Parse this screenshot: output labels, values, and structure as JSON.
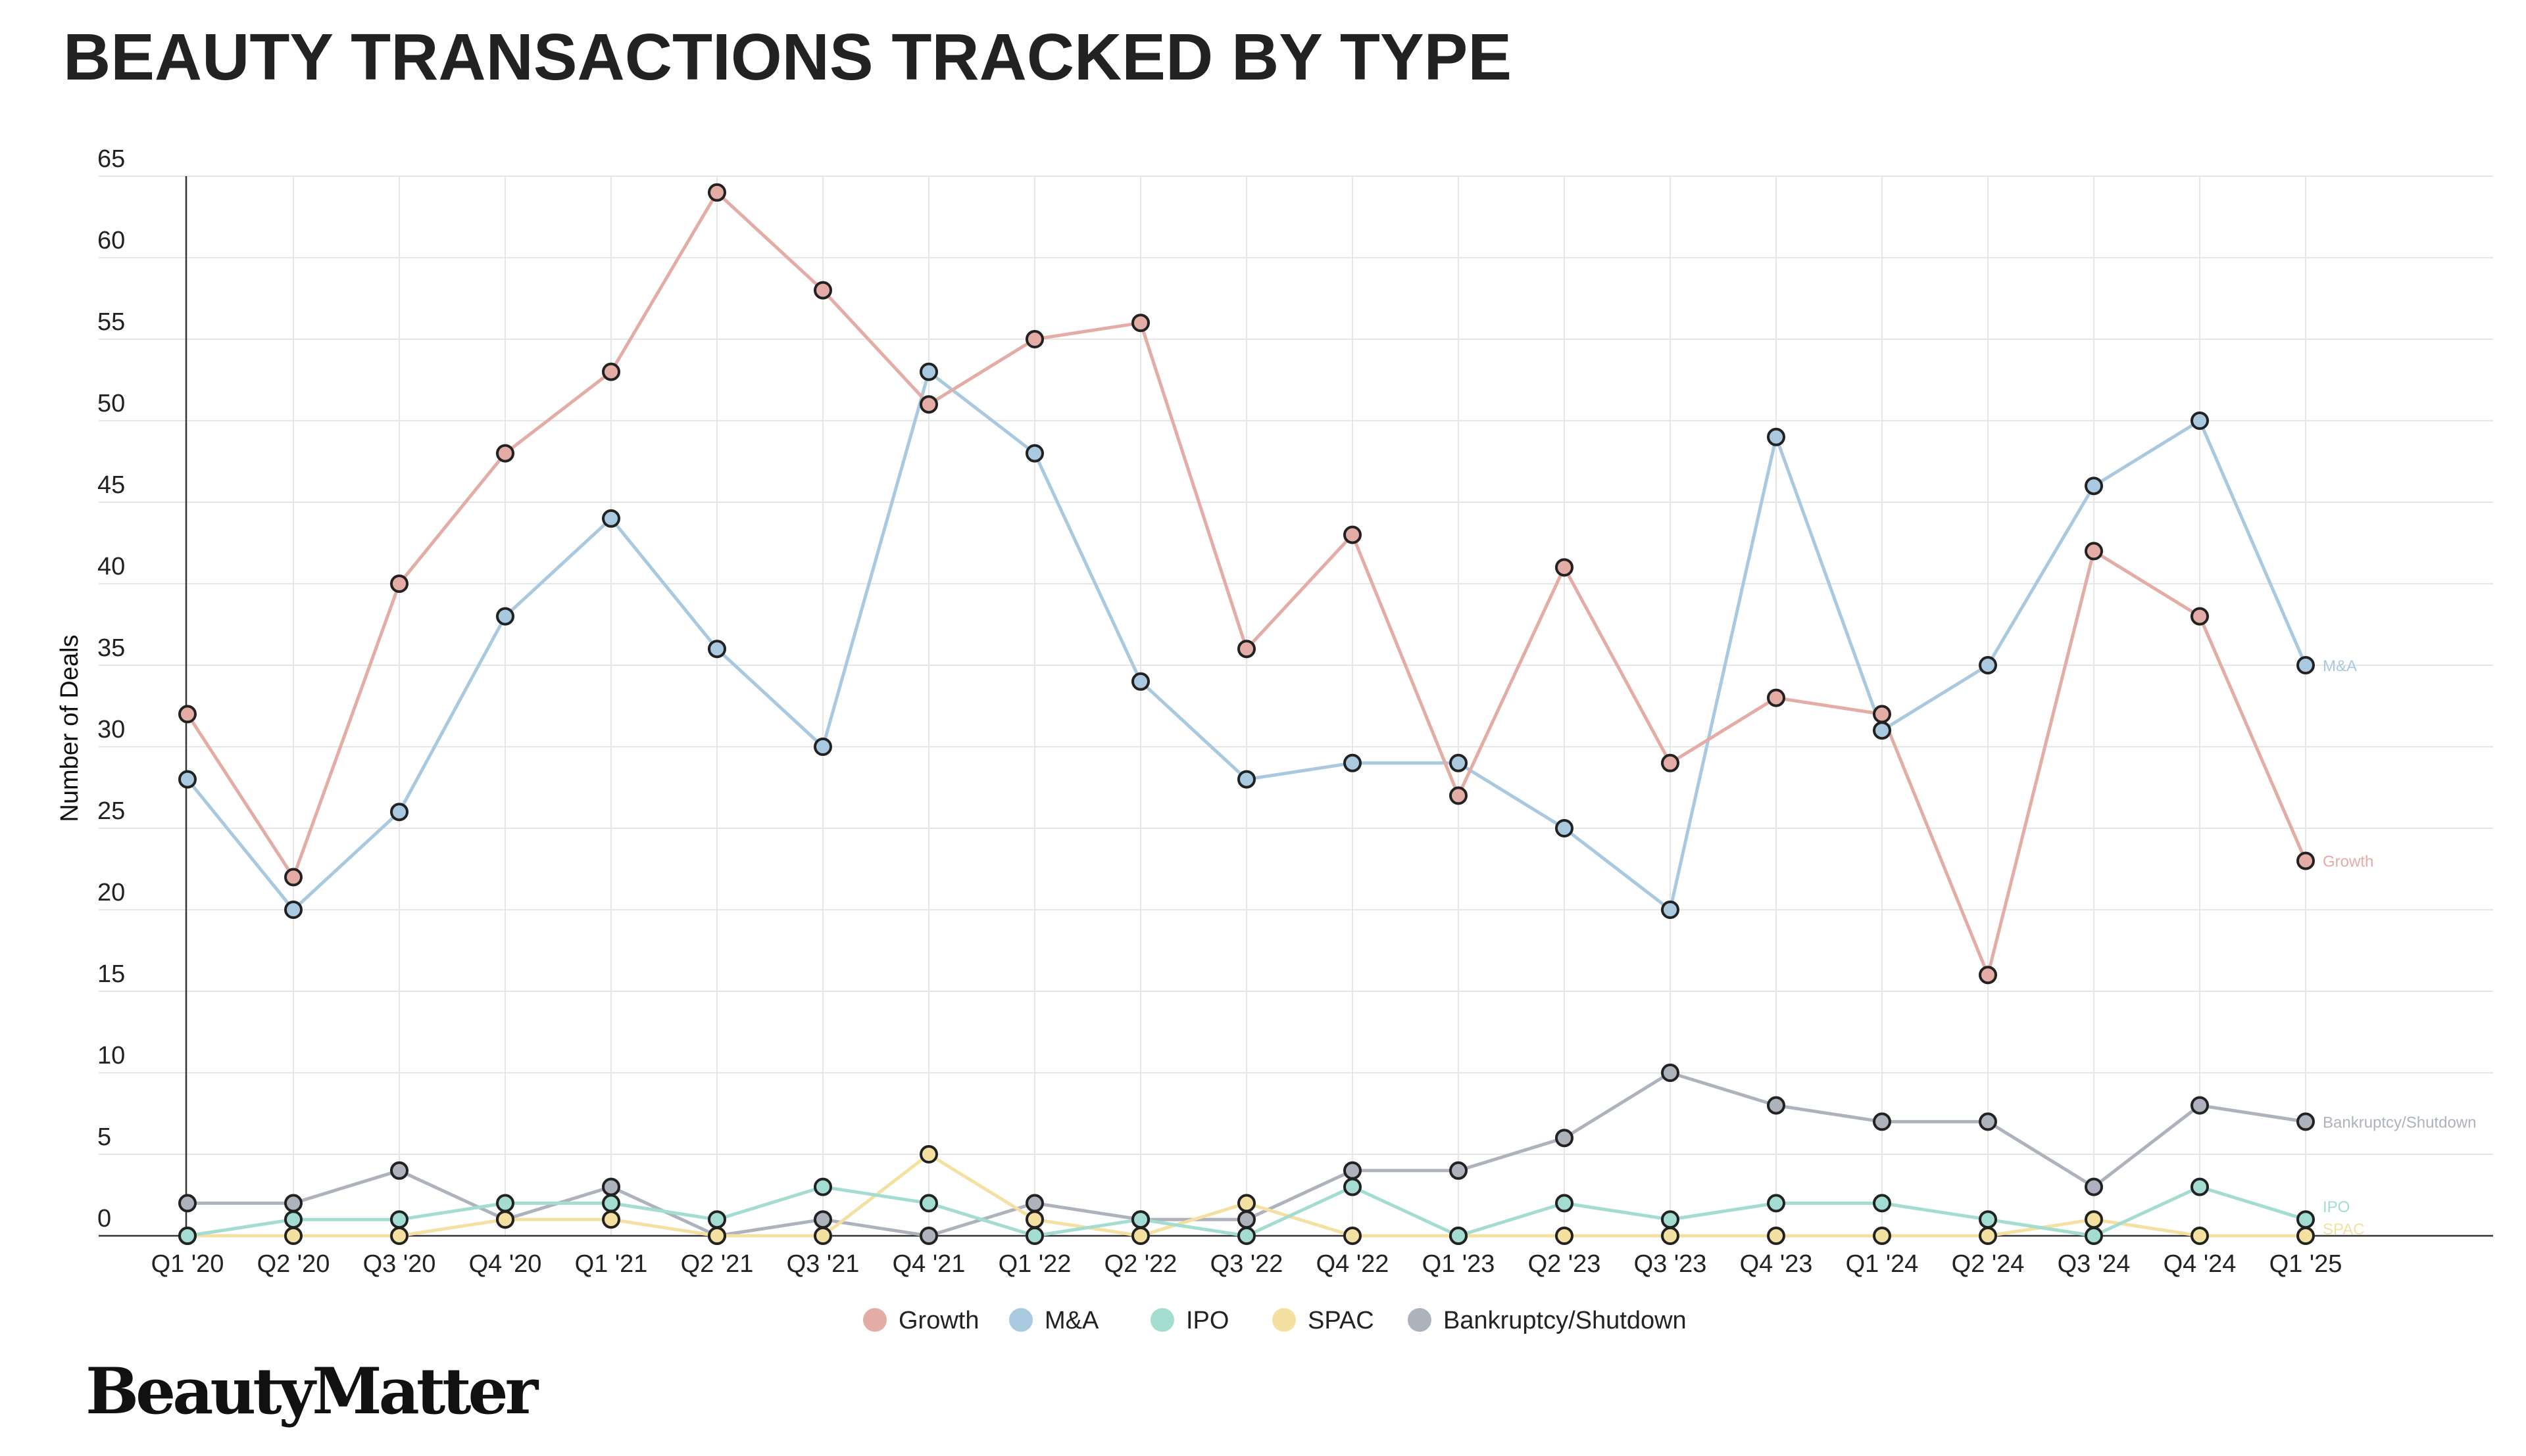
{
  "chart_data": {
    "type": "line",
    "title": "BEAUTY TRANSACTIONS TRACKED BY TYPE",
    "xlabel": "",
    "ylabel": "Number of Deals",
    "ylim": [
      0,
      65
    ],
    "yticks": [
      0,
      5,
      10,
      15,
      20,
      25,
      30,
      35,
      40,
      45,
      50,
      55,
      60,
      65
    ],
    "grid": true,
    "legend_position": "bottom",
    "categories": [
      "Q1 '20",
      "Q2 '20",
      "Q3 '20",
      "Q4 '20",
      "Q1 '21",
      "Q2 '21",
      "Q3 '21",
      "Q4 '21",
      "Q1 '22",
      "Q2 '22",
      "Q3 '22",
      "Q4 '22",
      "Q1 '23",
      "Q2 '23",
      "Q3 '23",
      "Q4 '23",
      "Q1 '24",
      "Q2 '24",
      "Q3 '24",
      "Q4 '24",
      "Q1 '25"
    ],
    "series": [
      {
        "name": "Growth",
        "color": "#e3aca4",
        "end_label": "Growth",
        "values": [
          32,
          22,
          40,
          48,
          53,
          64,
          58,
          51,
          55,
          56,
          36,
          43,
          27,
          41,
          29,
          33,
          32,
          16,
          42,
          38,
          23
        ]
      },
      {
        "name": "M&A",
        "color": "#a8c9df",
        "end_label": "M&A",
        "values": [
          28,
          20,
          26,
          38,
          44,
          36,
          30,
          53,
          48,
          34,
          28,
          29,
          29,
          25,
          20,
          49,
          31,
          35,
          46,
          50,
          35
        ]
      },
      {
        "name": "IPO",
        "color": "#a3dcd0",
        "end_label": "IPO",
        "values": [
          0,
          1,
          1,
          2,
          2,
          1,
          3,
          2,
          0,
          1,
          0,
          3,
          0,
          2,
          1,
          2,
          2,
          1,
          0,
          3,
          1
        ]
      },
      {
        "name": "SPAC",
        "color": "#f4e1a1",
        "end_label": "SPAC",
        "values": [
          0,
          0,
          0,
          1,
          1,
          0,
          0,
          5,
          1,
          0,
          2,
          0,
          0,
          0,
          0,
          0,
          0,
          0,
          1,
          0,
          0
        ]
      },
      {
        "name": "Bankruptcy/Shutdown",
        "color": "#adb2bd",
        "end_label": "Bankruptcy/Shutdown",
        "values": [
          2,
          2,
          4,
          1,
          3,
          0,
          1,
          0,
          2,
          1,
          1,
          4,
          4,
          6,
          10,
          8,
          7,
          7,
          3,
          8,
          7
        ]
      }
    ]
  },
  "brand": {
    "logo_text": "BeautyMatter"
  }
}
